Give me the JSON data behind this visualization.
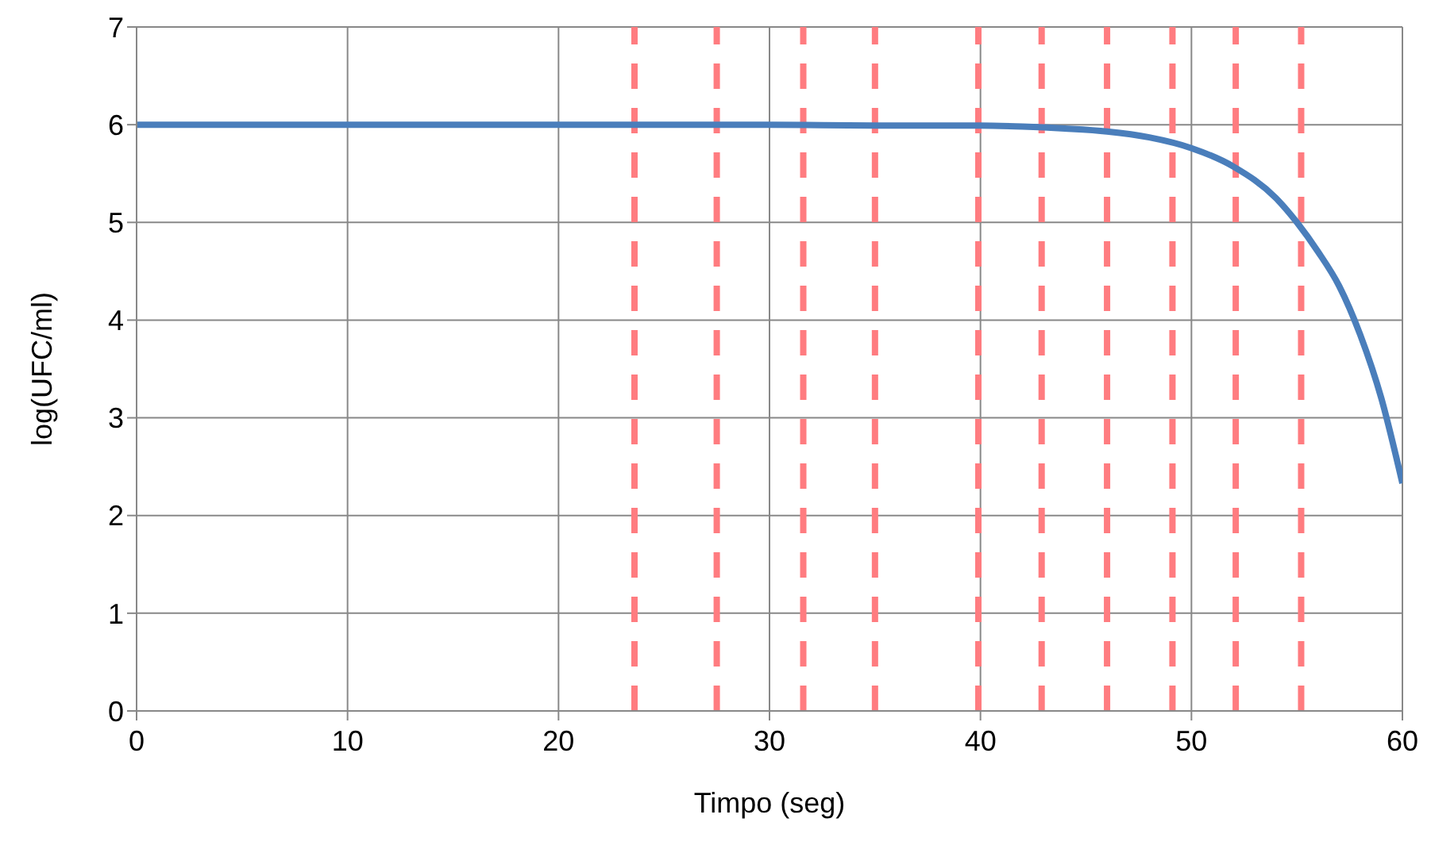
{
  "chart_data": {
    "type": "line",
    "xlabel": "Timpo (seg)",
    "ylabel": "log(UFC/ml)",
    "x": [
      0,
      10,
      20,
      30,
      35,
      40,
      42,
      44,
      46,
      48,
      50,
      52,
      54,
      55,
      56,
      57,
      58,
      59,
      60
    ],
    "series": [
      {
        "color": "#4a7ebb",
        "values": [
          6,
          6,
          6,
          6,
          5.99,
          5.99,
          5.98,
          5.96,
          5.93,
          5.87,
          5.76,
          5.57,
          5.25,
          5.0,
          4.7,
          4.35,
          3.85,
          3.2,
          2.33
        ]
      }
    ],
    "xlim": [
      0,
      60
    ],
    "xticks": [
      0,
      10,
      20,
      30,
      40,
      50,
      60
    ],
    "ylim": [
      0,
      7
    ],
    "yticks": [
      0,
      1,
      2,
      3,
      4,
      5,
      6,
      7
    ],
    "grid": true,
    "legend": false,
    "marker": "none",
    "line_style": "solid",
    "ref_lines": [
      {
        "axis": "x",
        "value": 23.6,
        "color": "#ff7c80",
        "line_style": "dashed"
      },
      {
        "axis": "x",
        "value": 27.5,
        "color": "#ff7c80",
        "line_style": "dashed"
      },
      {
        "axis": "x",
        "value": 31.6,
        "color": "#ff7c80",
        "line_style": "dashed"
      },
      {
        "axis": "x",
        "value": 35.0,
        "color": "#ff7c80",
        "line_style": "dashed"
      },
      {
        "axis": "x",
        "value": 39.9,
        "color": "#ff7c80",
        "line_style": "dashed"
      },
      {
        "axis": "x",
        "value": 42.9,
        "color": "#ff7c80",
        "line_style": "dashed"
      },
      {
        "axis": "x",
        "value": 46.0,
        "color": "#ff7c80",
        "line_style": "dashed"
      },
      {
        "axis": "x",
        "value": 49.1,
        "color": "#ff7c80",
        "line_style": "dashed"
      },
      {
        "axis": "x",
        "value": 52.1,
        "color": "#ff7c80",
        "line_style": "dashed"
      },
      {
        "axis": "x",
        "value": 55.2,
        "color": "#ff7c80",
        "line_style": "dashed"
      }
    ]
  }
}
